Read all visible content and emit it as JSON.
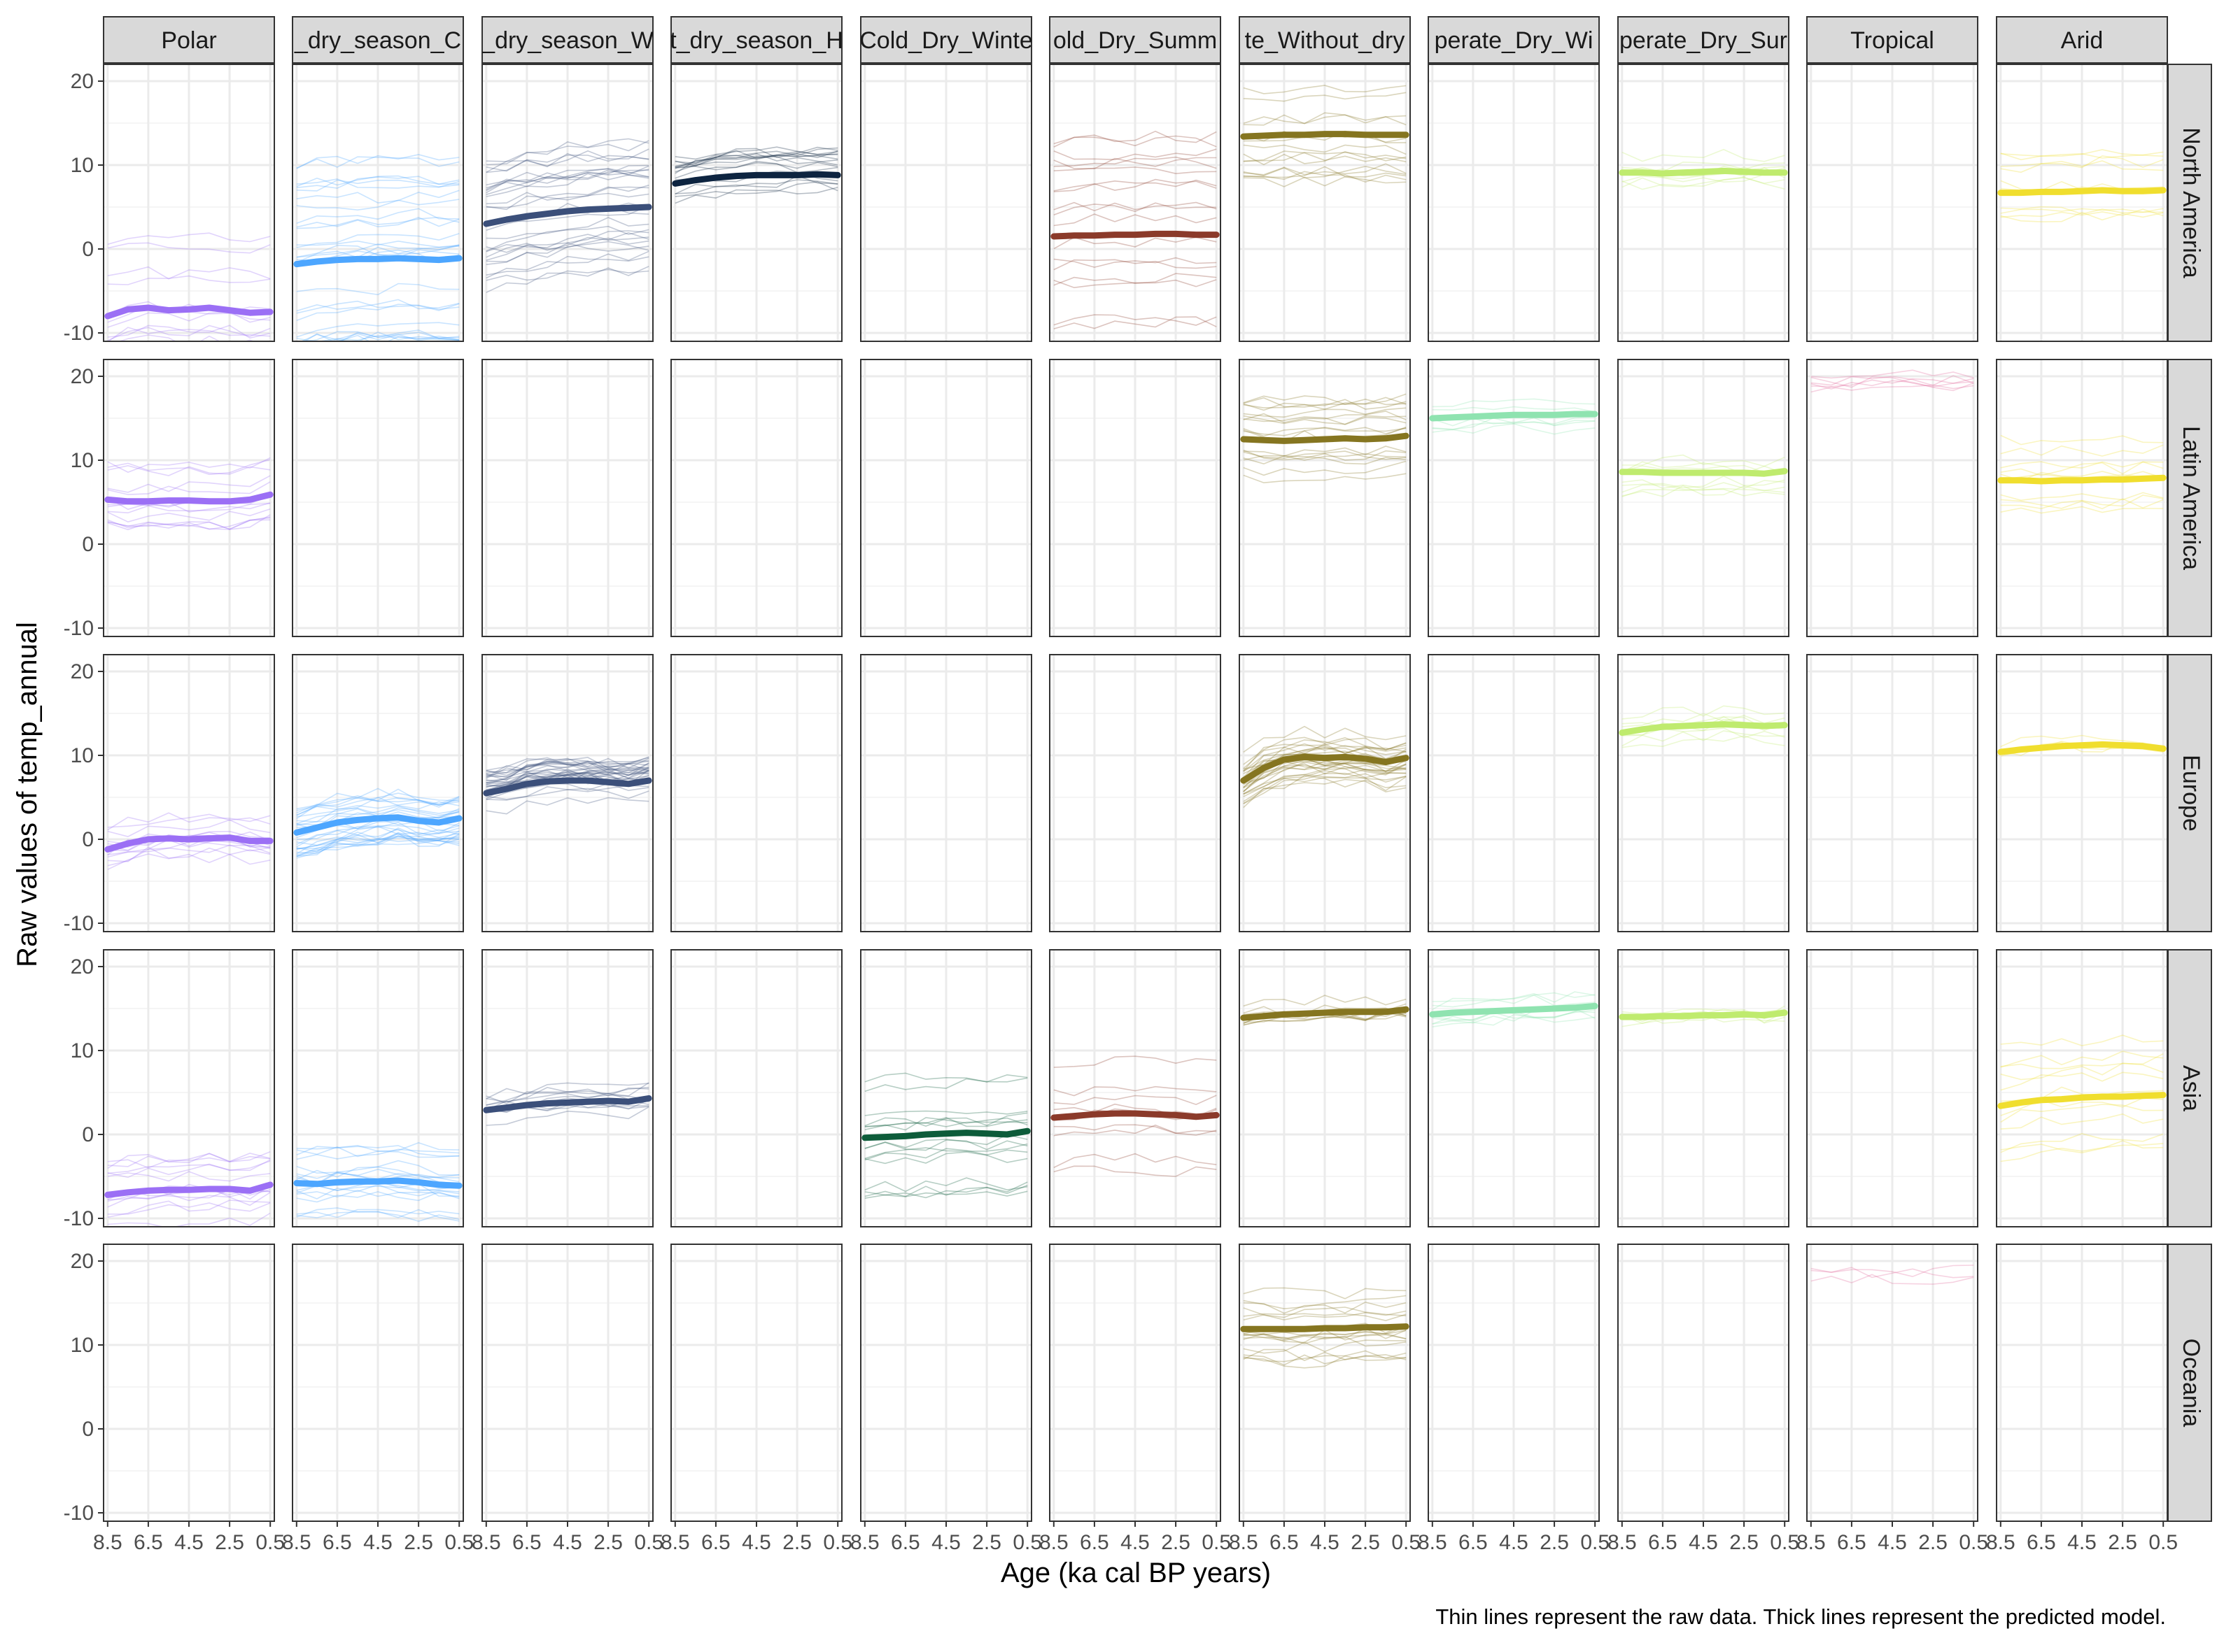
{
  "chart_data": {
    "type": "line",
    "title": "",
    "xlabel": "Age (ka cal BP years)",
    "ylabel": "Raw values of temp_annual",
    "caption": "Thin lines represent the raw data. Thick lines represent the predicted model.",
    "ylim": [
      -11,
      22
    ],
    "y_ticks": [
      -10,
      0,
      10,
      20
    ],
    "xlim": [
      8.7,
      0.3
    ],
    "x_ticks": [
      8.5,
      6.5,
      4.5,
      2.5,
      0.5
    ],
    "x_tick_labels": [
      "8.5",
      "6.5",
      "4.5",
      "2.5",
      "0.5"
    ],
    "grid": true,
    "legend": "none",
    "columns": [
      {
        "key": "polar",
        "label": "Polar",
        "color": "#9B6FF5"
      },
      {
        "key": "c_ds_c",
        "label": "_dry_season_C",
        "color": "#4DA6FF"
      },
      {
        "key": "c_ds_w",
        "label": "_dry_season_W",
        "color": "#3B4F7A"
      },
      {
        "key": "c_ds_h",
        "label": "t_dry_season_H",
        "color": "#0D2440"
      },
      {
        "key": "cold_dry_winter",
        "label": "Cold_Dry_Winte",
        "color": "#0D5C3A"
      },
      {
        "key": "cold_dry_summer",
        "label": "old_Dry_Summ",
        "color": "#8B3A2A"
      },
      {
        "key": "temp_without_dry",
        "label": "te_Without_dry",
        "color": "#857520"
      },
      {
        "key": "temp_dry_winter",
        "label": "perate_Dry_Wi",
        "color": "#8FE3B0"
      },
      {
        "key": "temp_dry_summer",
        "label": "perate_Dry_Sur",
        "color": "#BFEB6E"
      },
      {
        "key": "tropical",
        "label": "Tropical",
        "color": "#E0699A"
      },
      {
        "key": "arid",
        "label": "Arid",
        "color": "#F0DE2E"
      }
    ],
    "rows": [
      {
        "key": "north_america",
        "label": "North America"
      },
      {
        "key": "latin_america",
        "label": "Latin America"
      },
      {
        "key": "europe",
        "label": "Europe"
      },
      {
        "key": "asia",
        "label": "Asia"
      },
      {
        "key": "oceania",
        "label": "Oceania"
      }
    ],
    "age": [
      8.5,
      7.5,
      6.5,
      5.5,
      4.5,
      3.5,
      2.5,
      1.5,
      0.5
    ],
    "panels": [
      {
        "row": "north_america",
        "col": "polar",
        "model": [
          -8.0,
          -7.2,
          -7.0,
          -7.3,
          -7.2,
          -7.0,
          -7.3,
          -7.6,
          -7.5
        ],
        "raw_spread": 9,
        "raw_count": 14
      },
      {
        "row": "north_america",
        "col": "c_ds_c",
        "model": [
          -1.8,
          -1.5,
          -1.3,
          -1.2,
          -1.2,
          -1.1,
          -1.2,
          -1.3,
          -1.1
        ],
        "raw_spread": 12,
        "raw_count": 30
      },
      {
        "row": "north_america",
        "col": "c_ds_w",
        "model": [
          3.0,
          3.5,
          3.9,
          4.2,
          4.5,
          4.7,
          4.8,
          4.9,
          5.0
        ],
        "raw_spread": 8,
        "raw_count": 30
      },
      {
        "row": "north_america",
        "col": "c_ds_h",
        "model": [
          7.8,
          8.2,
          8.5,
          8.7,
          8.8,
          8.8,
          8.8,
          8.9,
          8.8
        ],
        "raw_spread": 3,
        "raw_count": 16
      },
      {
        "row": "north_america",
        "col": "cold_dry_summer",
        "model": [
          1.5,
          1.6,
          1.6,
          1.7,
          1.7,
          1.8,
          1.8,
          1.7,
          1.7
        ],
        "raw_spread": 12,
        "raw_count": 18
      },
      {
        "row": "north_america",
        "col": "temp_without_dry",
        "model": [
          13.4,
          13.5,
          13.6,
          13.6,
          13.7,
          13.7,
          13.6,
          13.6,
          13.6
        ],
        "raw_spread": 6,
        "raw_count": 16
      },
      {
        "row": "north_america",
        "col": "temp_dry_summer",
        "model": [
          9.1,
          9.1,
          9.0,
          9.1,
          9.2,
          9.3,
          9.2,
          9.1,
          9.1
        ],
        "raw_spread": 2,
        "raw_count": 8
      },
      {
        "row": "north_america",
        "col": "arid",
        "model": [
          6.7,
          6.7,
          6.8,
          6.8,
          6.9,
          7.0,
          6.9,
          6.9,
          7.0
        ],
        "raw_spread": 5,
        "raw_count": 10
      },
      {
        "row": "latin_america",
        "col": "polar",
        "model": [
          5.3,
          5.1,
          5.1,
          5.2,
          5.2,
          5.1,
          5.1,
          5.3,
          5.9
        ],
        "raw_spread": 4,
        "raw_count": 14
      },
      {
        "row": "latin_america",
        "col": "temp_without_dry",
        "model": [
          12.5,
          12.4,
          12.3,
          12.4,
          12.5,
          12.6,
          12.5,
          12.6,
          12.9
        ],
        "raw_spread": 5,
        "raw_count": 18
      },
      {
        "row": "latin_america",
        "col": "temp_dry_winter",
        "model": [
          15.0,
          15.1,
          15.2,
          15.3,
          15.4,
          15.4,
          15.4,
          15.5,
          15.5
        ],
        "raw_spread": 2,
        "raw_count": 6
      },
      {
        "row": "latin_america",
        "col": "temp_dry_summer",
        "model": [
          8.6,
          8.6,
          8.5,
          8.5,
          8.5,
          8.5,
          8.5,
          8.4,
          8.7
        ],
        "raw_spread": 3,
        "raw_count": 8
      },
      {
        "row": "latin_america",
        "col": "tropical",
        "model": [],
        "raw_center": 20,
        "raw_spread": 1.5,
        "raw_count": 6
      },
      {
        "row": "latin_america",
        "col": "arid",
        "model": [
          7.6,
          7.6,
          7.5,
          7.6,
          7.6,
          7.7,
          7.7,
          7.8,
          7.9
        ],
        "raw_spread": 5,
        "raw_count": 10
      },
      {
        "row": "europe",
        "col": "polar",
        "model": [
          -1.2,
          -0.5,
          0.0,
          0.1,
          0.0,
          0.1,
          0.2,
          -0.2,
          -0.2
        ],
        "raw_spread": 2.5,
        "raw_count": 14
      },
      {
        "row": "europe",
        "col": "c_ds_c",
        "model": [
          0.8,
          1.4,
          2.0,
          2.3,
          2.5,
          2.6,
          2.2,
          2.0,
          2.5
        ],
        "raw_spread": 3,
        "raw_count": 30
      },
      {
        "row": "europe",
        "col": "c_ds_w",
        "model": [
          5.5,
          6.0,
          6.6,
          6.9,
          7.0,
          7.0,
          6.8,
          6.6,
          7.0
        ],
        "raw_spread": 2.5,
        "raw_count": 30
      },
      {
        "row": "europe",
        "col": "temp_without_dry",
        "model": [
          7.0,
          8.5,
          9.5,
          9.8,
          9.7,
          9.8,
          9.6,
          9.2,
          9.7
        ],
        "raw_spread": 3,
        "raw_count": 30
      },
      {
        "row": "europe",
        "col": "temp_dry_summer",
        "model": [
          12.7,
          13.1,
          13.4,
          13.5,
          13.6,
          13.7,
          13.6,
          13.5,
          13.6
        ],
        "raw_spread": 3,
        "raw_count": 8
      },
      {
        "row": "europe",
        "col": "arid",
        "model": [
          10.4,
          10.7,
          10.9,
          11.1,
          11.2,
          11.3,
          11.2,
          11.1,
          10.8
        ],
        "raw_spread": 0.8,
        "raw_count": 4
      },
      {
        "row": "asia",
        "col": "polar",
        "model": [
          -7.2,
          -6.9,
          -6.7,
          -6.6,
          -6.6,
          -6.5,
          -6.5,
          -6.7,
          -6.0
        ],
        "raw_spread": 4,
        "raw_count": 14
      },
      {
        "row": "asia",
        "col": "c_ds_c",
        "model": [
          -5.8,
          -5.9,
          -5.7,
          -5.6,
          -5.6,
          -5.5,
          -5.7,
          -6.0,
          -6.1
        ],
        "raw_spread": 4.5,
        "raw_count": 18
      },
      {
        "row": "asia",
        "col": "c_ds_w",
        "model": [
          2.9,
          3.2,
          3.5,
          3.7,
          3.8,
          3.9,
          4.0,
          3.9,
          4.3
        ],
        "raw_spread": 2,
        "raw_count": 12
      },
      {
        "row": "asia",
        "col": "cold_dry_winter",
        "model": [
          -0.4,
          -0.3,
          -0.2,
          0.0,
          0.1,
          0.2,
          0.1,
          0.0,
          0.4
        ],
        "raw_spread": 7,
        "raw_count": 16
      },
      {
        "row": "asia",
        "col": "cold_dry_summer",
        "model": [
          2.0,
          2.2,
          2.4,
          2.5,
          2.5,
          2.4,
          2.3,
          2.1,
          2.3
        ],
        "raw_spread": 7,
        "raw_count": 10
      },
      {
        "row": "asia",
        "col": "temp_without_dry",
        "model": [
          13.9,
          14.1,
          14.3,
          14.4,
          14.5,
          14.6,
          14.6,
          14.6,
          14.9
        ],
        "raw_spread": 1.5,
        "raw_count": 10
      },
      {
        "row": "asia",
        "col": "temp_dry_winter",
        "model": [
          14.3,
          14.5,
          14.6,
          14.7,
          14.8,
          14.9,
          15.0,
          15.1,
          15.3
        ],
        "raw_spread": 1.5,
        "raw_count": 8
      },
      {
        "row": "asia",
        "col": "temp_dry_summer",
        "model": [
          14.0,
          14.0,
          14.1,
          14.1,
          14.2,
          14.2,
          14.3,
          14.2,
          14.5
        ],
        "raw_spread": 0.8,
        "raw_count": 6
      },
      {
        "row": "asia",
        "col": "arid",
        "model": [
          3.4,
          3.8,
          4.1,
          4.2,
          4.4,
          4.5,
          4.5,
          4.6,
          4.7
        ],
        "raw_spread": 7,
        "raw_count": 12
      },
      {
        "row": "oceania",
        "col": "temp_without_dry",
        "model": [
          11.9,
          11.9,
          11.9,
          11.9,
          12.0,
          12.0,
          12.1,
          12.1,
          12.2
        ],
        "raw_spread": 5,
        "raw_count": 18
      },
      {
        "row": "oceania",
        "col": "tropical",
        "model": [],
        "raw_center": 19,
        "raw_spread": 1.5,
        "raw_count": 3
      }
    ]
  }
}
